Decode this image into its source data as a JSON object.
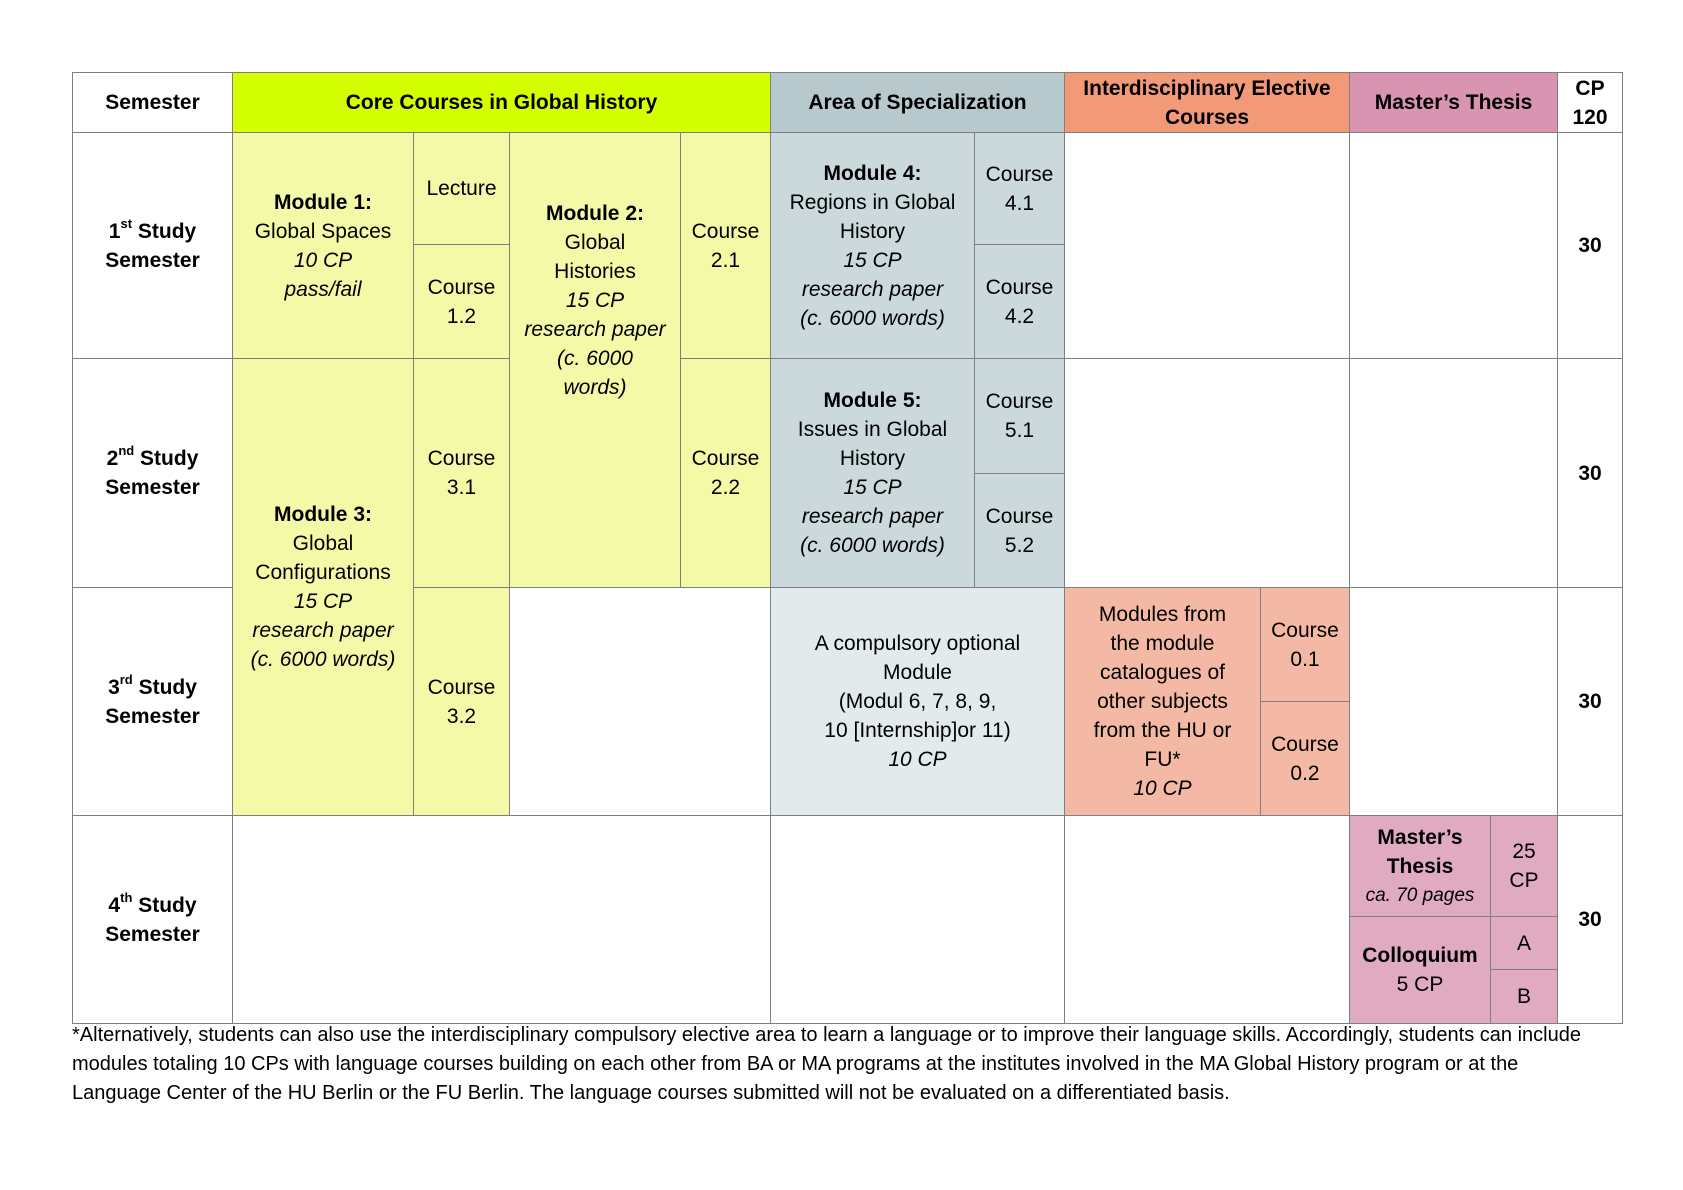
{
  "header": {
    "semester": "Semester",
    "core": "Core Courses in Global History",
    "area": "Area of Specialization",
    "elective": "Interdisciplinary Elective Courses",
    "thesis": "Master’s Thesis",
    "cp_line1": "CP",
    "cp_line2": "120"
  },
  "semesters": [
    {
      "ord": "1",
      "sup": "st",
      "line1": " Study",
      "line2": "Semester",
      "cp": "30"
    },
    {
      "ord": "2",
      "sup": "nd",
      "line1": " Study",
      "line2": "Semester",
      "cp": "30"
    },
    {
      "ord": "3",
      "sup": "rd",
      "line1": " Study",
      "line2": "Semester",
      "cp": "30"
    },
    {
      "ord": "4",
      "sup": "th",
      "line1": " Study",
      "line2": "Semester",
      "cp": "30"
    }
  ],
  "core": {
    "m1": {
      "title": "Module 1:",
      "name": "Global Spaces",
      "cp": "10 CP",
      "note": "pass/fail"
    },
    "lecture": "Lecture",
    "c12": {
      "a": "Course",
      "b": "1.2"
    },
    "m2": {
      "title": "Module 2:",
      "name1": "Global",
      "name2": "Histories",
      "cp": "15 CP",
      "note1": "research paper",
      "note2": "(c. 6000",
      "note3": "words)"
    },
    "c21": {
      "a": "Course",
      "b": "2.1"
    },
    "c22": {
      "a": "Course",
      "b": "2.2"
    },
    "m3": {
      "title": "Module 3:",
      "name1": "Global",
      "name2": "Configurations",
      "cp": "15 CP",
      "note1": "research paper",
      "note2": "(c. 6000 words)"
    },
    "c31": {
      "a": "Course",
      "b": "3.1"
    },
    "c32": {
      "a": "Course",
      "b": "3.2"
    }
  },
  "area": {
    "m4": {
      "title": "Module 4:",
      "name1": "Regions in Global",
      "name2": "History",
      "cp": "15 CP",
      "note1": "research paper",
      "note2": "(c. 6000 words)"
    },
    "c41": {
      "a": "Course",
      "b": "4.1"
    },
    "c42": {
      "a": "Course",
      "b": "4.2"
    },
    "m5": {
      "title": "Module 5:",
      "name1": "Issues in Global",
      "name2": "History",
      "cp": "15 CP",
      "note1": "research paper",
      "note2": "(c. 6000 words)"
    },
    "c51": {
      "a": "Course",
      "b": "5.1"
    },
    "c52": {
      "a": "Course",
      "b": "5.2"
    },
    "opt": {
      "l1": "A compulsory optional",
      "l2": "Module",
      "l3": "(Modul 6, 7, 8, 9,",
      "l4": "10 [Internship]or 11)",
      "cp": "10 CP"
    }
  },
  "elective": {
    "mod": {
      "l1": "Modules from",
      "l2": "the module",
      "l3": "catalogues of",
      "l4": "other subjects",
      "l5": "from the HU or",
      "l6": "FU*",
      "cp": "10 CP"
    },
    "c01": {
      "a": "Course",
      "b": "0.1"
    },
    "c02": {
      "a": "Course",
      "b": "0.2"
    }
  },
  "thesis": {
    "title1": "Master’s",
    "title2": "Thesis",
    "pages": "ca. 70 pages",
    "cp1": "25",
    "cp2": "CP",
    "colloquium": "Colloquium",
    "coll_cp": "5 CP",
    "a": "A",
    "b": "B"
  },
  "footnote": "*Alternatively, students can also use the interdisciplinary compulsory elective area to learn a language or to improve their language skills. Accordingly, students can include modules totaling 10 CPs with language courses building on each other from BA or MA programs at the institutes involved in the MA Global History program or at the Language Center of the HU Berlin or the FU Berlin. The language courses submitted will not be evaluated on a differentiated basis.",
  "colors": {
    "core_header": "#d4ff00",
    "core": "#f4f9a8",
    "area_header": "#b8c9cd",
    "area": "#ccd9dc",
    "area_optional": "#e3eaec",
    "elective_header": "#f29a78",
    "elective": "#f4b9a4",
    "thesis_header": "#d894b0",
    "thesis": "#e0abc1"
  }
}
